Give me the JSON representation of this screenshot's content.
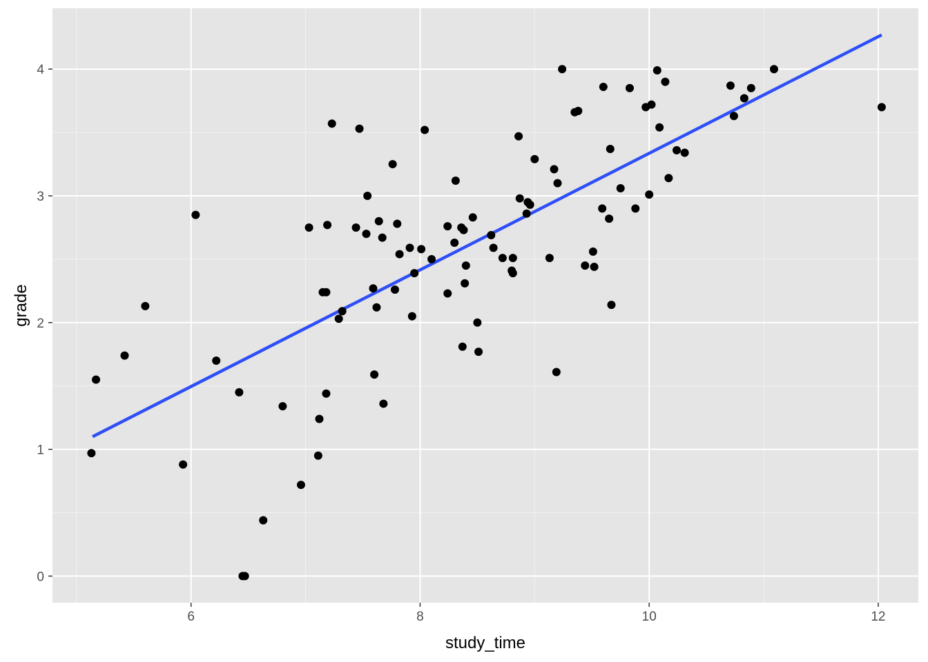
{
  "chart_data": {
    "type": "scatter",
    "title": "",
    "xlabel": "study_time",
    "ylabel": "grade",
    "xlim": [
      4.79,
      12.35
    ],
    "ylim": [
      -0.21,
      4.48
    ],
    "x_ticks": [
      6,
      8,
      10,
      12
    ],
    "x_tick_labels": [
      "6",
      "8",
      "10",
      "12"
    ],
    "y_ticks": [
      0,
      1,
      2,
      3,
      4
    ],
    "y_tick_labels": [
      "0",
      "1",
      "2",
      "3",
      "4"
    ],
    "grid": true,
    "legend": "none",
    "colors": {
      "panel": "#e5e5e5",
      "grid_major": "#ffffff",
      "grid_minor": "#f2f2f2",
      "points": "#000000",
      "trend_line": "#2e4ff6"
    },
    "trend_line": {
      "x": [
        5.14,
        12.03
      ],
      "y": [
        1.1,
        4.27
      ]
    },
    "points": [
      [
        5.13,
        0.97
      ],
      [
        5.17,
        1.55
      ],
      [
        5.42,
        1.74
      ],
      [
        5.6,
        2.13
      ],
      [
        5.93,
        0.88
      ],
      [
        6.04,
        2.85
      ],
      [
        6.22,
        1.7
      ],
      [
        6.42,
        1.45
      ],
      [
        6.45,
        0.0
      ],
      [
        6.47,
        0.0
      ],
      [
        6.63,
        0.44
      ],
      [
        6.8,
        1.34
      ],
      [
        6.96,
        0.72
      ],
      [
        7.03,
        2.75
      ],
      [
        7.11,
        0.95
      ],
      [
        7.12,
        1.24
      ],
      [
        7.15,
        2.24
      ],
      [
        7.18,
        2.24
      ],
      [
        7.18,
        1.44
      ],
      [
        7.19,
        2.77
      ],
      [
        7.23,
        3.57
      ],
      [
        7.29,
        2.03
      ],
      [
        7.32,
        2.09
      ],
      [
        7.44,
        2.75
      ],
      [
        7.47,
        3.53
      ],
      [
        7.53,
        2.7
      ],
      [
        7.54,
        3.0
      ],
      [
        7.59,
        2.27
      ],
      [
        7.6,
        1.59
      ],
      [
        7.62,
        2.12
      ],
      [
        7.64,
        2.8
      ],
      [
        7.67,
        2.67
      ],
      [
        7.68,
        1.36
      ],
      [
        7.76,
        3.25
      ],
      [
        7.78,
        2.26
      ],
      [
        7.8,
        2.78
      ],
      [
        7.82,
        2.54
      ],
      [
        7.91,
        2.59
      ],
      [
        7.93,
        2.05
      ],
      [
        7.95,
        2.39
      ],
      [
        8.01,
        2.58
      ],
      [
        8.04,
        3.52
      ],
      [
        8.1,
        2.5
      ],
      [
        8.24,
        2.76
      ],
      [
        8.24,
        2.23
      ],
      [
        8.3,
        2.63
      ],
      [
        8.31,
        3.12
      ],
      [
        8.36,
        2.75
      ],
      [
        8.37,
        1.81
      ],
      [
        8.38,
        2.73
      ],
      [
        8.39,
        2.31
      ],
      [
        8.4,
        2.45
      ],
      [
        8.46,
        2.83
      ],
      [
        8.5,
        2.0
      ],
      [
        8.51,
        1.77
      ],
      [
        8.62,
        2.69
      ],
      [
        8.64,
        2.59
      ],
      [
        8.72,
        2.51
      ],
      [
        8.8,
        2.41
      ],
      [
        8.81,
        2.51
      ],
      [
        8.81,
        2.39
      ],
      [
        8.86,
        3.47
      ],
      [
        8.87,
        2.98
      ],
      [
        8.93,
        2.86
      ],
      [
        8.94,
        2.95
      ],
      [
        8.96,
        2.93
      ],
      [
        9.0,
        3.29
      ],
      [
        9.13,
        2.51
      ],
      [
        9.17,
        3.21
      ],
      [
        9.19,
        1.61
      ],
      [
        9.2,
        3.1
      ],
      [
        9.24,
        4.0
      ],
      [
        9.35,
        3.66
      ],
      [
        9.38,
        3.67
      ],
      [
        9.44,
        2.45
      ],
      [
        9.51,
        2.56
      ],
      [
        9.52,
        2.44
      ],
      [
        9.59,
        2.9
      ],
      [
        9.6,
        3.86
      ],
      [
        9.65,
        2.82
      ],
      [
        9.66,
        3.37
      ],
      [
        9.67,
        2.14
      ],
      [
        9.75,
        3.06
      ],
      [
        9.83,
        3.85
      ],
      [
        9.88,
        2.9
      ],
      [
        9.97,
        3.7
      ],
      [
        10.0,
        3.01
      ],
      [
        10.02,
        3.72
      ],
      [
        10.07,
        3.99
      ],
      [
        10.09,
        3.54
      ],
      [
        10.14,
        3.9
      ],
      [
        10.17,
        3.14
      ],
      [
        10.24,
        3.36
      ],
      [
        10.31,
        3.34
      ],
      [
        10.71,
        3.87
      ],
      [
        10.74,
        3.63
      ],
      [
        10.83,
        3.77
      ],
      [
        10.89,
        3.85
      ],
      [
        11.09,
        4.0
      ],
      [
        12.03,
        3.7
      ]
    ]
  }
}
